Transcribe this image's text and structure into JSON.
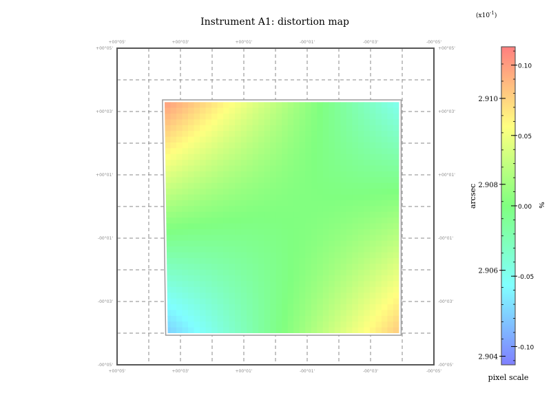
{
  "chart_data": [
    {
      "type": "heatmap",
      "title": "Instrument A1: distortion map",
      "x_tick_labels": [
        "+00°05'",
        "+00°03'",
        "+00°01'",
        "-00°01'",
        "-00°03'",
        "-00°05'"
      ],
      "y_tick_labels": [
        "+00°05'",
        "+00°03'",
        "+00°01'",
        "-00°01'",
        "-00°03'",
        "-00°05'"
      ],
      "x_range": [
        5,
        -5
      ],
      "y_range": [
        5,
        -5
      ],
      "grid": true,
      "field_corners": {
        "top_left": [
          3.5,
          3.3
        ],
        "top_right": [
          -3.9,
          3.3
        ],
        "bottom_right": [
          -3.9,
          -4.0
        ],
        "bottom_left": [
          3.4,
          -4.0
        ]
      },
      "field_values": {
        "top_left": 0.1,
        "top_right": -0.05,
        "bottom_left": -0.08,
        "bottom_right": 0.08,
        "center": 0.0
      }
    },
    {
      "type": "colorbar",
      "multiplier_label": "(x10",
      "multiplier_exponent": "-1",
      "multiplier_close": ")",
      "left_label": "arcsec",
      "right_label": "%",
      "bottom_label": "pixel scale",
      "left_range": [
        2.9038,
        2.9112
      ],
      "left_ticks": [
        "2.910",
        "2.908",
        "2.906",
        "2.904"
      ],
      "left_tick_values": [
        2.91,
        2.908,
        2.906,
        2.904
      ],
      "right_range": [
        -0.113,
        0.113
      ],
      "right_ticks": [
        "0.10",
        "0.05",
        "0.00",
        "-0.05",
        "-0.10"
      ],
      "right_tick_values": [
        0.1,
        0.05,
        0.0,
        -0.05,
        -0.1
      ],
      "colormap": [
        "#7f7fff",
        "#80ffff",
        "#80ff80",
        "#ffff80",
        "#ff7f7f"
      ]
    }
  ]
}
